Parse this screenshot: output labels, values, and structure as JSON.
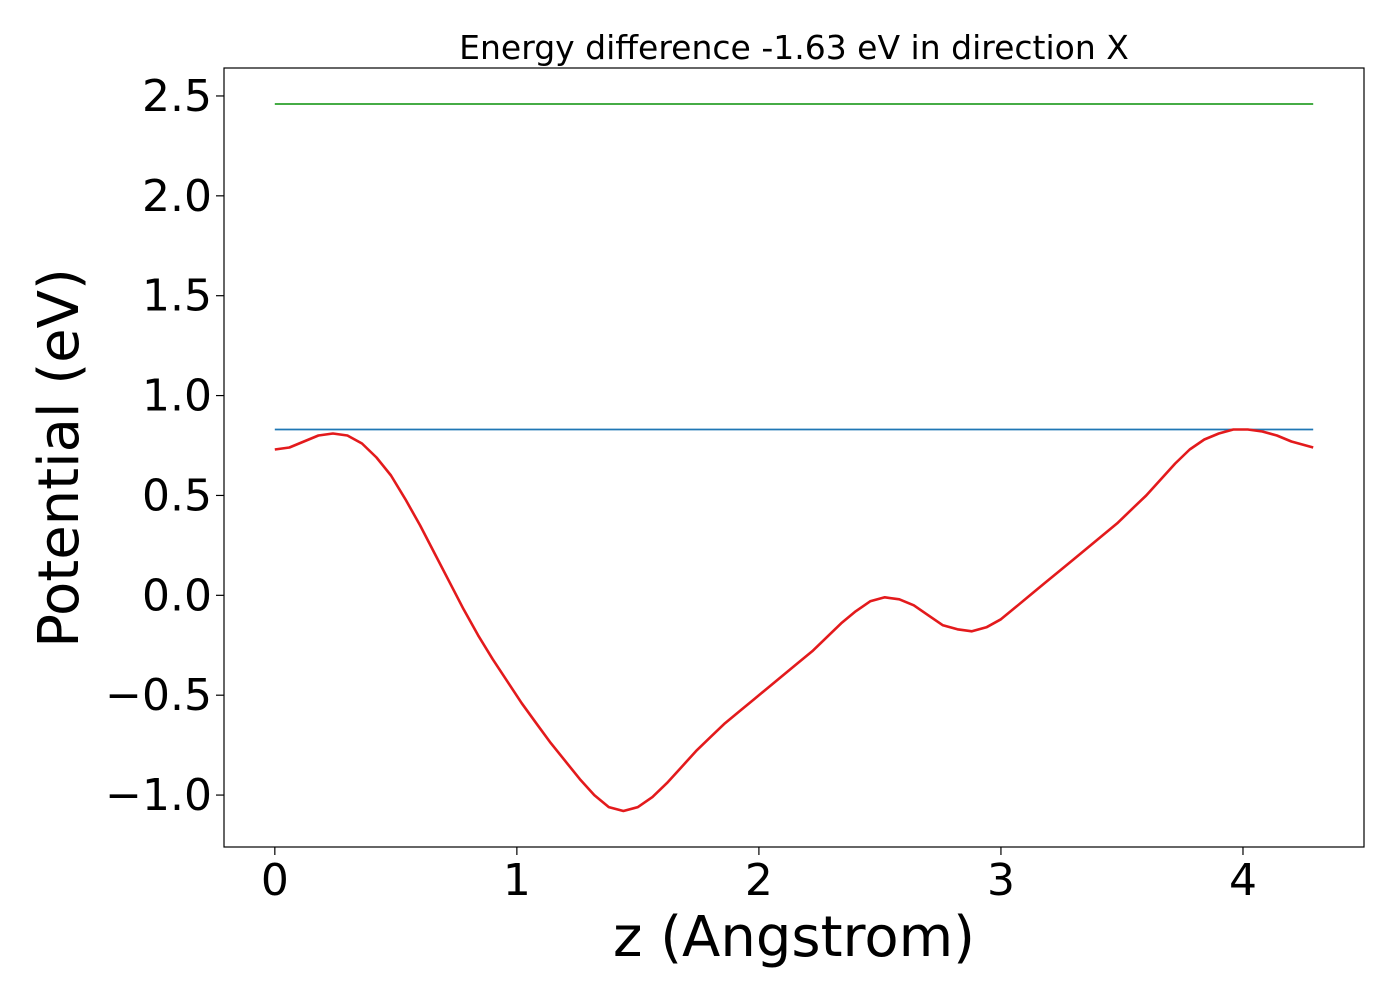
{
  "chart_data": {
    "type": "line",
    "title": "Energy difference -1.63 eV in direction X",
    "xlabel": "z (Angstrom)",
    "ylabel": "Potential (eV)",
    "xlim": [
      -0.21,
      4.5
    ],
    "ylim": [
      -1.26,
      2.64
    ],
    "x_ticks": [
      0,
      1,
      2,
      3,
      4
    ],
    "x_tick_labels": [
      "0",
      "1",
      "2",
      "3",
      "4"
    ],
    "y_ticks": [
      -1.0,
      -0.5,
      0.0,
      0.5,
      1.0,
      1.5,
      2.0,
      2.5
    ],
    "y_tick_labels": [
      "−1.0",
      "−0.5",
      "0.0",
      "0.5",
      "1.0",
      "1.5",
      "2.0",
      "2.5"
    ],
    "grid": false,
    "series": [
      {
        "name": "potential",
        "color": "#e31a1c",
        "x": [
          0,
          0.06,
          0.12,
          0.18,
          0.24,
          0.3,
          0.36,
          0.42,
          0.48,
          0.54,
          0.6,
          0.66,
          0.72,
          0.78,
          0.84,
          0.9,
          0.96,
          1.02,
          1.08,
          1.14,
          1.2,
          1.26,
          1.32,
          1.38,
          1.44,
          1.5,
          1.56,
          1.62,
          1.68,
          1.74,
          1.8,
          1.86,
          1.92,
          1.98,
          2.04,
          2.1,
          2.16,
          2.22,
          2.28,
          2.34,
          2.4,
          2.46,
          2.52,
          2.58,
          2.64,
          2.7,
          2.76,
          2.82,
          2.88,
          2.94,
          3.0,
          3.06,
          3.12,
          3.18,
          3.24,
          3.3,
          3.36,
          3.42,
          3.48,
          3.54,
          3.6,
          3.66,
          3.72,
          3.78,
          3.84,
          3.9,
          3.96,
          4.02,
          4.08,
          4.14,
          4.2,
          4.29
        ],
        "y": [
          0.73,
          0.74,
          0.77,
          0.8,
          0.81,
          0.8,
          0.76,
          0.69,
          0.6,
          0.48,
          0.35,
          0.21,
          0.07,
          -0.07,
          -0.2,
          -0.32,
          -0.43,
          -0.54,
          -0.64,
          -0.74,
          -0.83,
          -0.92,
          -1.0,
          -1.06,
          -1.08,
          -1.06,
          -1.01,
          -0.94,
          -0.86,
          -0.78,
          -0.71,
          -0.64,
          -0.58,
          -0.52,
          -0.46,
          -0.4,
          -0.34,
          -0.28,
          -0.21,
          -0.14,
          -0.08,
          -0.03,
          -0.01,
          -0.02,
          -0.05,
          -0.1,
          -0.15,
          -0.17,
          -0.18,
          -0.16,
          -0.12,
          -0.06,
          0.0,
          0.06,
          0.12,
          0.18,
          0.24,
          0.3,
          0.36,
          0.43,
          0.5,
          0.58,
          0.66,
          0.73,
          0.78,
          0.81,
          0.83,
          0.83,
          0.82,
          0.8,
          0.77,
          0.74
        ]
      },
      {
        "name": "level-1",
        "color": "#1f77b4",
        "x": [
          0,
          4.29
        ],
        "y": [
          0.83,
          0.83
        ]
      },
      {
        "name": "level-2",
        "color": "#2ca02c",
        "x": [
          0,
          4.29
        ],
        "y": [
          2.46,
          2.46
        ]
      }
    ]
  }
}
